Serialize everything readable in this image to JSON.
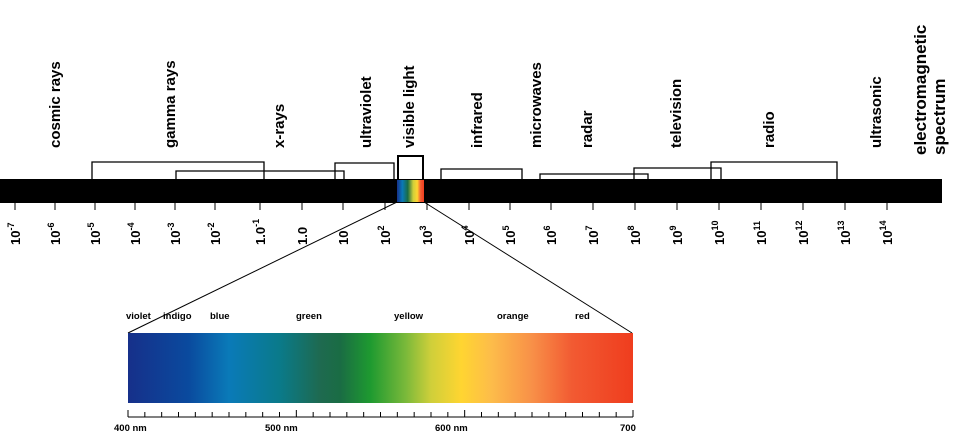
{
  "title_lines": [
    "electromagnetic",
    "spectrum"
  ],
  "bands": [
    {
      "id": "cosmic-rays",
      "label": "cosmic rays"
    },
    {
      "id": "gamma-rays",
      "label": "gamma rays"
    },
    {
      "id": "x-rays",
      "label": "x-rays"
    },
    {
      "id": "ultraviolet",
      "label": "ultraviolet"
    },
    {
      "id": "visible-light",
      "label": "visible light"
    },
    {
      "id": "infrared",
      "label": "infrared"
    },
    {
      "id": "microwaves",
      "label": "microwaves"
    },
    {
      "id": "radar",
      "label": "radar"
    },
    {
      "id": "television",
      "label": "television"
    },
    {
      "id": "radio",
      "label": "radio"
    },
    {
      "id": "ultrasonic",
      "label": "ultrasonic"
    }
  ],
  "ticks": [
    {
      "base": "10",
      "exp": "-7"
    },
    {
      "base": "10",
      "exp": "-6"
    },
    {
      "base": "10",
      "exp": "-5"
    },
    {
      "base": "10",
      "exp": "-4"
    },
    {
      "base": "10",
      "exp": "-3"
    },
    {
      "base": "10",
      "exp": "-2"
    },
    {
      "base": "1.0",
      "exp": "-1"
    },
    {
      "base": "1.0",
      "exp": ""
    },
    {
      "base": "10",
      "exp": ""
    },
    {
      "base": "10",
      "exp": "2"
    },
    {
      "base": "10",
      "exp": "3"
    },
    {
      "base": "10",
      "exp": "4"
    },
    {
      "base": "10",
      "exp": "5"
    },
    {
      "base": "10",
      "exp": "6"
    },
    {
      "base": "10",
      "exp": "7"
    },
    {
      "base": "10",
      "exp": "8"
    },
    {
      "base": "10",
      "exp": "9"
    },
    {
      "base": "10",
      "exp": "10"
    },
    {
      "base": "10",
      "exp": "11"
    },
    {
      "base": "10",
      "exp": "12"
    },
    {
      "base": "10",
      "exp": "13"
    },
    {
      "base": "10",
      "exp": "14"
    }
  ],
  "visible_spectrum": {
    "colors": [
      "violet",
      "indigo",
      "blue",
      "green",
      "yellow",
      "orange",
      "red"
    ],
    "wavelength_labels": [
      "400 nm",
      "500 nm",
      "600 nm",
      "700"
    ],
    "gradient_colors": [
      "#1a237e",
      "#0d47a1",
      "#0277bd",
      "#00695c",
      "#2e7d32",
      "#43a047",
      "#fdd835",
      "#f9a825",
      "#fb8c00",
      "#f4511e",
      "#e53935"
    ]
  },
  "colors": {
    "bar": "#000000",
    "background": "#ffffff"
  }
}
